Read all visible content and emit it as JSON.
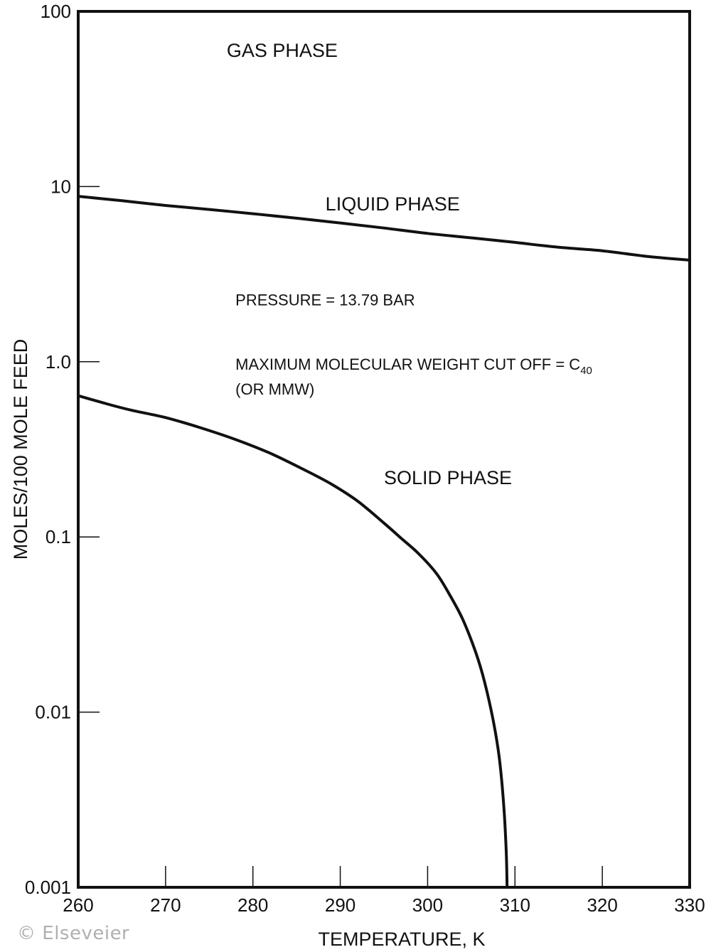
{
  "chart_data": {
    "type": "line",
    "xlabel": "TEMPERATURE, K",
    "ylabel": "MOLES/100 MOLE FEED",
    "xlim": [
      260,
      330
    ],
    "ylim": [
      0.001,
      100
    ],
    "yscale": "log",
    "grid": false,
    "x_ticks": [
      260,
      270,
      280,
      290,
      300,
      310,
      320,
      330
    ],
    "x_tick_labels": [
      "260",
      "270",
      "280",
      "290",
      "300",
      "310",
      "320",
      "330"
    ],
    "y_ticks": [
      0.001,
      0.01,
      0.1,
      1.0,
      10,
      100
    ],
    "y_tick_labels": [
      "0.001",
      "0.01",
      "0.1",
      "1.0",
      "10",
      "100"
    ],
    "series": [
      {
        "x": [
          260,
          265,
          270,
          275,
          280,
          285,
          290,
          295,
          300,
          305,
          310,
          315,
          320,
          325,
          330
        ],
        "y": [
          8.8,
          8.3,
          7.8,
          7.4,
          7.0,
          6.6,
          6.2,
          5.8,
          5.4,
          5.1,
          4.8,
          4.5,
          4.3,
          4.0,
          3.8
        ]
      },
      {
        "x": [
          260,
          263,
          266,
          270,
          274,
          278,
          282,
          286,
          289,
          292,
          295,
          297,
          299,
          301,
          302.5,
          304,
          305.5,
          306.5,
          307.5,
          308.2,
          308.7,
          309.0,
          309.1
        ],
        "y": [
          0.64,
          0.58,
          0.53,
          0.48,
          0.42,
          0.36,
          0.3,
          0.24,
          0.2,
          0.16,
          0.12,
          0.098,
          0.08,
          0.062,
          0.047,
          0.034,
          0.022,
          0.015,
          0.009,
          0.0055,
          0.003,
          0.0016,
          0.001
        ]
      }
    ],
    "annotations": [
      {
        "text": "GAS PHASE",
        "x": 277,
        "y": 55
      },
      {
        "text": "LIQUID PHASE",
        "x": 288.3,
        "y": 7.3
      },
      {
        "text": "SOLID PHASE",
        "x": 295,
        "y": 0.2
      },
      {
        "text": "PRESSURE = 13.79 BAR",
        "x": 278,
        "y": 2.1
      },
      {
        "text": "MAXIMUM MOLECULAR WEIGHT CUT OFF = C",
        "sub": "40",
        "x": 278,
        "y": 0.9
      },
      {
        "text": "(OR MMW)",
        "x": 278,
        "y": 0.65
      }
    ]
  },
  "watermark": "© Elseveier"
}
